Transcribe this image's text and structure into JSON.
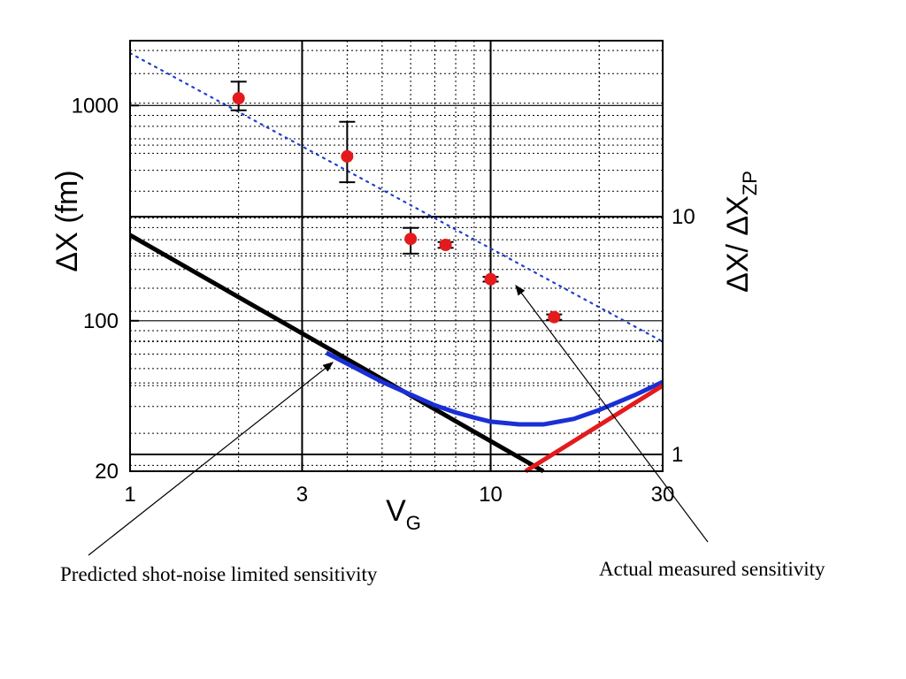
{
  "chart_data": {
    "type": "scatter",
    "xlabel": "V",
    "xlabel_sub": "G",
    "ylabel": "ΔX (fm)",
    "y2label": "ΔX/ ΔX",
    "y2label_sub": "ZP",
    "xscale": "log",
    "yscale": "log",
    "xlim": [
      1,
      30
    ],
    "ylim": [
      20,
      2000
    ],
    "y2lim": [
      0.85,
      55
    ],
    "x_ticks": [
      {
        "value": 1,
        "label": "1"
      },
      {
        "value": 3,
        "label": "3"
      },
      {
        "value": 10,
        "label": "10"
      },
      {
        "value": 30,
        "label": "30"
      }
    ],
    "y_ticks": [
      {
        "value": 20,
        "label": "20"
      },
      {
        "value": 100,
        "label": "100"
      },
      {
        "value": 1000,
        "label": "1000"
      }
    ],
    "y2_ticks": [
      {
        "value": 1,
        "label": "1"
      },
      {
        "value": 10,
        "label": "10"
      }
    ],
    "grid": true,
    "points": {
      "color": "#e41a1c",
      "x": [
        2,
        4,
        6,
        7.5,
        10,
        15
      ],
      "y": [
        1080,
        580,
        240,
        225,
        156,
        104
      ],
      "err_low": [
        950,
        440,
        205,
        218,
        152,
        101
      ],
      "err_high": [
        1290,
        840,
        270,
        232,
        160,
        107
      ]
    },
    "dotted_fit": {
      "color": "#1f3fcf",
      "x": [
        1,
        30
      ],
      "y": [
        1750,
        80
      ]
    },
    "black_line": {
      "color": "#000000",
      "x": [
        1,
        14
      ],
      "y": [
        250,
        20
      ]
    },
    "blue_curve": {
      "color": "#1a2fd6",
      "x": [
        3.5,
        5,
        7,
        8,
        9,
        10,
        12,
        14,
        17,
        20,
        25,
        30
      ],
      "y": [
        71,
        52,
        40.5,
        37.5,
        35.5,
        34,
        33,
        33,
        35,
        38.5,
        45,
        52
      ]
    },
    "red_line": {
      "color": "#e41a1c",
      "x": [
        12.5,
        30
      ],
      "y": [
        20,
        50
      ]
    }
  },
  "annotations": {
    "left": "Predicted shot-noise limited sensitivity",
    "right": "Actual measured sensitivity"
  }
}
